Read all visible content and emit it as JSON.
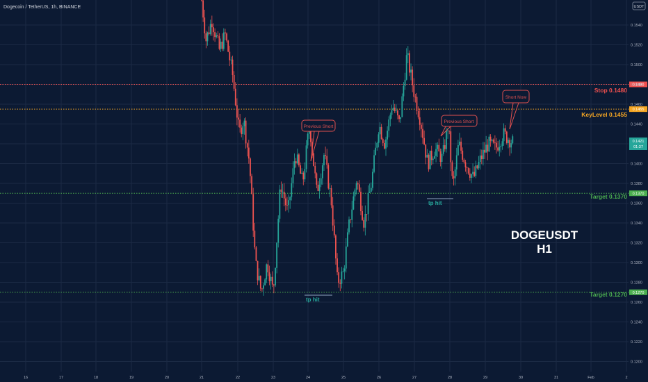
{
  "header": {
    "symbol_title": "Dogecoin / TetherUS, 1h, BINANCE"
  },
  "price_axis": {
    "currency": "USDT",
    "ticks": [
      "0.1540",
      "0.1520",
      "0.1500",
      "0.1480",
      "0.1460",
      "0.1440",
      "0.1420",
      "0.1400",
      "0.1380",
      "0.1360",
      "0.1340",
      "0.1320",
      "0.1300",
      "0.1280",
      "0.1260",
      "0.1240",
      "0.1220",
      "0.1200"
    ],
    "last_price": "0.1421",
    "countdown": "01:37"
  },
  "time_axis": {
    "ticks": [
      "16",
      "17",
      "18",
      "19",
      "20",
      "21",
      "22",
      "23",
      "24",
      "25",
      "26",
      "27",
      "28",
      "29",
      "30",
      "31",
      "Feb",
      "2"
    ]
  },
  "levels": [
    {
      "name": "Stop",
      "text": "Stop 0.1480",
      "badge": "0.1480",
      "color": "#f0504f"
    },
    {
      "name": "KeyLevel",
      "text": "KeyLevel 0.1455",
      "badge": "0.1455",
      "color": "#f5a623"
    },
    {
      "name": "Target",
      "text": "Target 0.1370",
      "badge": "0.1370",
      "color": "#4caf50"
    },
    {
      "name": "Target",
      "text": "Target 0.1270",
      "badge": "0.1270",
      "color": "#4caf50"
    }
  ],
  "annotations": {
    "previous_short_1": "Previous Short",
    "previous_short_2": "Previous Short",
    "short_now": "Short Now",
    "tp_hit_1": "tp hit",
    "tp_hit_2": "tp hit"
  },
  "watermark": {
    "line1": "DOGEUSDT",
    "line2": "H1"
  },
  "colors": {
    "up": "#26a69a",
    "down": "#ef5350",
    "background": "#0c1a33",
    "grid": "#1b2a44"
  },
  "chart_data": {
    "type": "candlestick",
    "title": "Dogecoin / TetherUS, 1h, BINANCE",
    "ylim": [
      0.1195,
      0.156
    ],
    "x_dates": [
      "Jan 16",
      "Jan 17",
      "Jan 18",
      "Jan 19",
      "Jan 20",
      "Jan 21",
      "Jan 22",
      "Jan 23",
      "Jan 24",
      "Jan 25",
      "Jan 26",
      "Jan 27",
      "Jan 28",
      "Jan 29",
      "Jan 30",
      "Jan 31",
      "Feb 1",
      "Feb 2"
    ],
    "series_close_path": [
      [
        "Jan 21 00:00",
        0.1565
      ],
      [
        "Jan 21 03:00",
        0.1525
      ],
      [
        "Jan 21 07:00",
        0.1545
      ],
      [
        "Jan 21 12:00",
        0.1515
      ],
      [
        "Jan 21 16:00",
        0.153
      ],
      [
        "Jan 21 21:00",
        0.149
      ],
      [
        "Jan 22 01:00",
        0.143
      ],
      [
        "Jan 22 04:00",
        0.1445
      ],
      [
        "Jan 22 08:00",
        0.14
      ],
      [
        "Jan 22 12:00",
        0.13
      ],
      [
        "Jan 22 16:00",
        0.127
      ],
      [
        "Jan 22 20:00",
        0.13
      ],
      [
        "Jan 23 00:00",
        0.127
      ],
      [
        "Jan 23 05:00",
        0.138
      ],
      [
        "Jan 23 10:00",
        0.135
      ],
      [
        "Jan 23 15:00",
        0.141
      ],
      [
        "Jan 23 20:00",
        0.138
      ],
      [
        "Jan 24 01:00",
        0.144
      ],
      [
        "Jan 24 06:00",
        0.137
      ],
      [
        "Jan 24 11:00",
        0.141
      ],
      [
        "Jan 24 16:00",
        0.136
      ],
      [
        "Jan 24 20:00",
        0.128
      ],
      [
        "Jan 25 00:00",
        0.129
      ],
      [
        "Jan 25 04:00",
        0.134
      ],
      [
        "Jan 25 09:00",
        0.1385
      ],
      [
        "Jan 25 14:00",
        0.134
      ],
      [
        "Jan 25 19:00",
        0.138
      ],
      [
        "Jan 26 00:00",
        0.144
      ],
      [
        "Jan 26 04:00",
        0.142
      ],
      [
        "Jan 26 09:00",
        0.146
      ],
      [
        "Jan 26 14:00",
        0.144
      ],
      [
        "Jan 26 19:00",
        0.151
      ],
      [
        "Jan 27 00:00",
        0.147
      ],
      [
        "Jan 27 04:00",
        0.1445
      ],
      [
        "Jan 27 09:00",
        0.14
      ],
      [
        "Jan 27 14:00",
        0.1415
      ],
      [
        "Jan 27 19:00",
        0.1405
      ],
      [
        "Jan 27 23:00",
        0.144
      ],
      [
        "Jan 28 02:00",
        0.1375
      ],
      [
        "Jan 28 06:00",
        0.142
      ],
      [
        "Jan 28 11:00",
        0.14
      ],
      [
        "Jan 28 16:00",
        0.1385
      ],
      [
        "Jan 28 21:00",
        0.1405
      ],
      [
        "Jan 29 02:00",
        0.142
      ],
      [
        "Jan 29 07:00",
        0.1415
      ],
      [
        "Jan 29 12:00",
        0.143
      ],
      [
        "Jan 29 16:00",
        0.1425
      ],
      [
        "Jan 29 19:00",
        0.1421
      ]
    ]
  }
}
